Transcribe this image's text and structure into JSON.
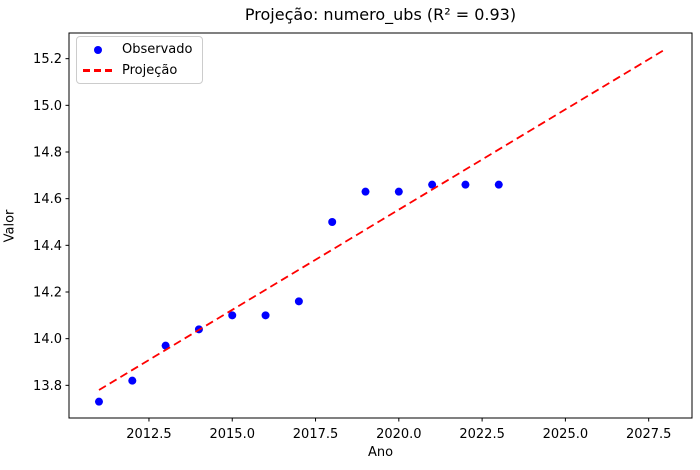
{
  "chart_data": {
    "type": "scatter",
    "title": "Projeção: numero_ubs (R² = 0.93)",
    "xlabel": "Ano",
    "ylabel": "Valor",
    "r_squared": 0.93,
    "grid": false,
    "legend_position": "upper-left",
    "xlim": [
      2010.1,
      2028.8
    ],
    "ylim": [
      13.66,
      15.31
    ],
    "xticks": [
      2012.5,
      2015.0,
      2017.5,
      2020.0,
      2022.5,
      2025.0,
      2027.5
    ],
    "yticks": [
      13.8,
      14.0,
      14.2,
      14.4,
      14.6,
      14.8,
      15.0,
      15.2
    ],
    "series": [
      {
        "name": "Observado",
        "type": "scatter",
        "color": "#0000ff",
        "marker": "circle",
        "x": [
          2011,
          2012,
          2013,
          2014,
          2015,
          2016,
          2017,
          2018,
          2019,
          2020,
          2021,
          2022,
          2023
        ],
        "y": [
          13.73,
          13.82,
          13.97,
          14.04,
          14.1,
          14.1,
          14.16,
          14.5,
          14.63,
          14.63,
          14.66,
          14.66,
          14.66
        ]
      },
      {
        "name": "Projeção",
        "type": "line",
        "style": "dashed",
        "color": "#ff0000",
        "x": [
          2011,
          2028
        ],
        "y": [
          13.78,
          15.24
        ]
      }
    ]
  }
}
